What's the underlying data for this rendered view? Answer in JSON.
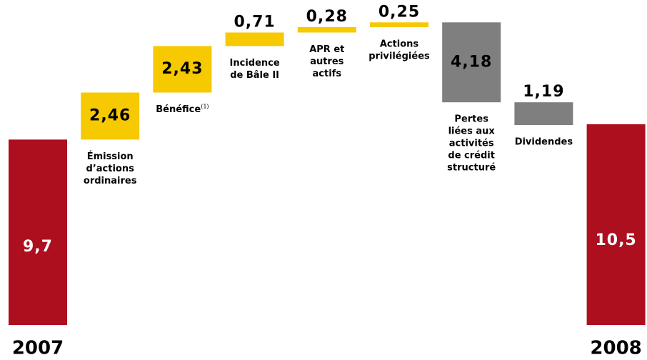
{
  "chart_data": {
    "type": "waterfall",
    "categories": [
      [
        "2007"
      ],
      [
        "Émission",
        "d’actions",
        "ordinaires"
      ],
      [
        "Bénéfice"
      ],
      [
        "Incidence",
        "de Bâle II"
      ],
      [
        "APR et",
        "autres",
        "actifs"
      ],
      [
        "Actions",
        "privilégiées"
      ],
      [
        "Pertes",
        "liées aux",
        "activités",
        "de crédit",
        "structuré"
      ],
      [
        "Dividendes"
      ],
      [
        "2008"
      ]
    ],
    "category_superscripts": [
      null,
      null,
      "(1)",
      null,
      null,
      null,
      null,
      null,
      null
    ],
    "measure": [
      "absolute",
      "relative",
      "relative",
      "relative",
      "relative",
      "relative",
      "relative",
      "relative",
      "absolute"
    ],
    "values": [
      9.7,
      2.46,
      2.43,
      0.71,
      0.28,
      0.25,
      -4.18,
      -1.19,
      10.5
    ],
    "value_labels": [
      "9,7",
      "2,46",
      "2,43",
      "0,71",
      "0,28",
      "0,25",
      "4,18",
      "1,19",
      "10,5"
    ],
    "colors": {
      "total": "#ad0f1f",
      "increase": "#f7c900",
      "decrease": "#7f7f7f"
    },
    "ylim": [
      0,
      17
    ]
  }
}
